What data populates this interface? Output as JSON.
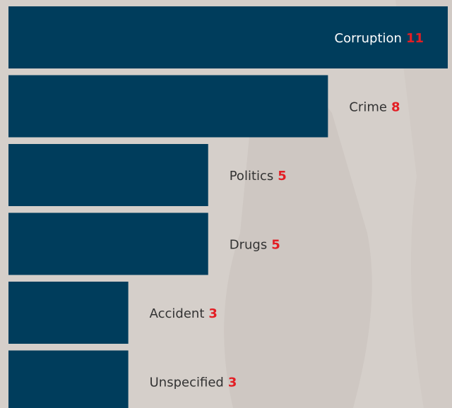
{
  "chart_data": {
    "type": "bar",
    "orientation": "horizontal",
    "categories": [
      "Corruption",
      "Crime",
      "Politics",
      "Drugs",
      "Accident",
      "Unspecified"
    ],
    "values": [
      11,
      8,
      5,
      5,
      3,
      3
    ],
    "color": "#003d5c",
    "value_label_color": "#e31e24",
    "xlim": [
      0,
      11
    ]
  }
}
